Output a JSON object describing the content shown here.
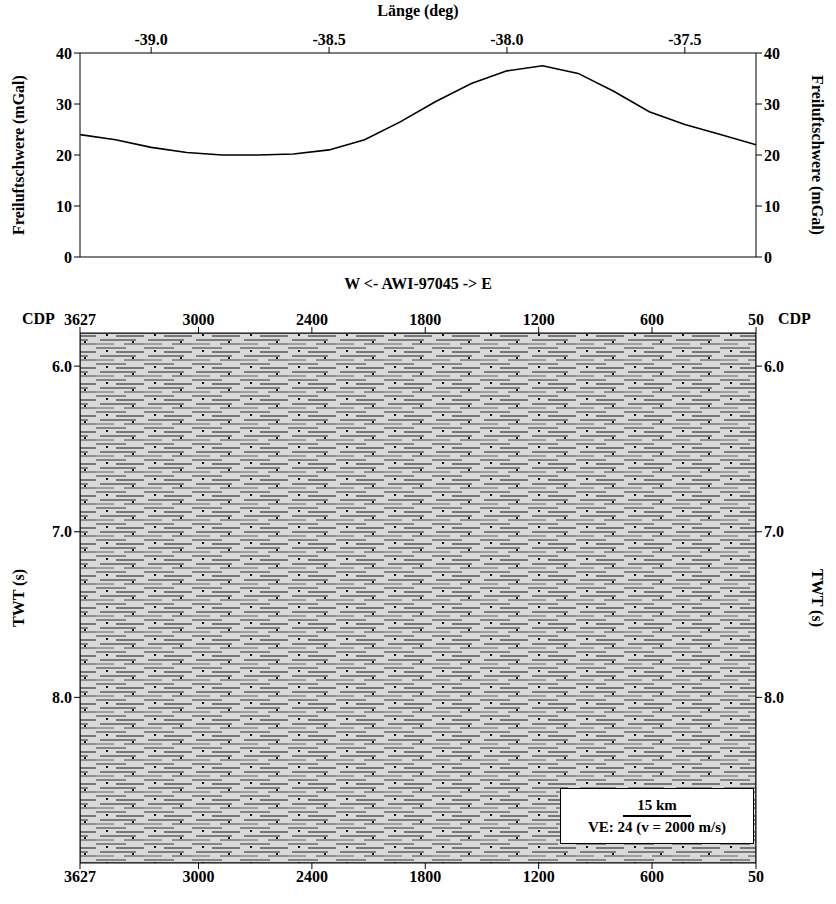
{
  "chart_data": [
    {
      "type": "line",
      "x_label": "Länge (deg)",
      "y_label": "Freiluftschwere (mGal)",
      "x": [
        -39.2,
        -39.1,
        -39.0,
        -38.9,
        -38.8,
        -38.7,
        -38.6,
        -38.5,
        -38.4,
        -38.3,
        -38.2,
        -38.1,
        -38.0,
        -37.9,
        -37.8,
        -37.7,
        -37.6,
        -37.5,
        -37.4,
        -37.3
      ],
      "values": [
        24,
        23,
        21.5,
        20.5,
        20,
        20,
        20.2,
        21,
        23,
        26.5,
        30.5,
        34,
        36.5,
        37.5,
        36,
        32.5,
        28.5,
        26,
        24,
        22
      ],
      "color": "#000000",
      "xlim": [
        -39.2,
        -37.3
      ],
      "xticks": [
        {
          "value": -39,
          "label": "-39.0"
        },
        {
          "value": -38.5,
          "label": "-38.5"
        },
        {
          "value": -38,
          "label": "-38.0"
        },
        {
          "value": -37.5,
          "label": "-37.5"
        }
      ],
      "ylim": [
        0,
        40
      ],
      "yticks": [
        0,
        10,
        20,
        30,
        40
      ]
    },
    {
      "type": "seismic_section",
      "title": "W <- AWI-97045 -> E",
      "x_label": "CDP",
      "y_label": "TWT (s)",
      "xlim": [
        3627,
        50
      ],
      "xticks": [
        3627,
        3000,
        2400,
        1800,
        1200,
        600,
        50
      ],
      "ylim": [
        5.8,
        9.0
      ],
      "yticks": [
        {
          "value": 6,
          "label": "6.0"
        },
        {
          "value": 7,
          "label": "7.0"
        },
        {
          "value": 8,
          "label": "8.0"
        }
      ],
      "annotations": [
        "15 km",
        "VE: 24  (v = 2000 m/s)"
      ]
    }
  ]
}
